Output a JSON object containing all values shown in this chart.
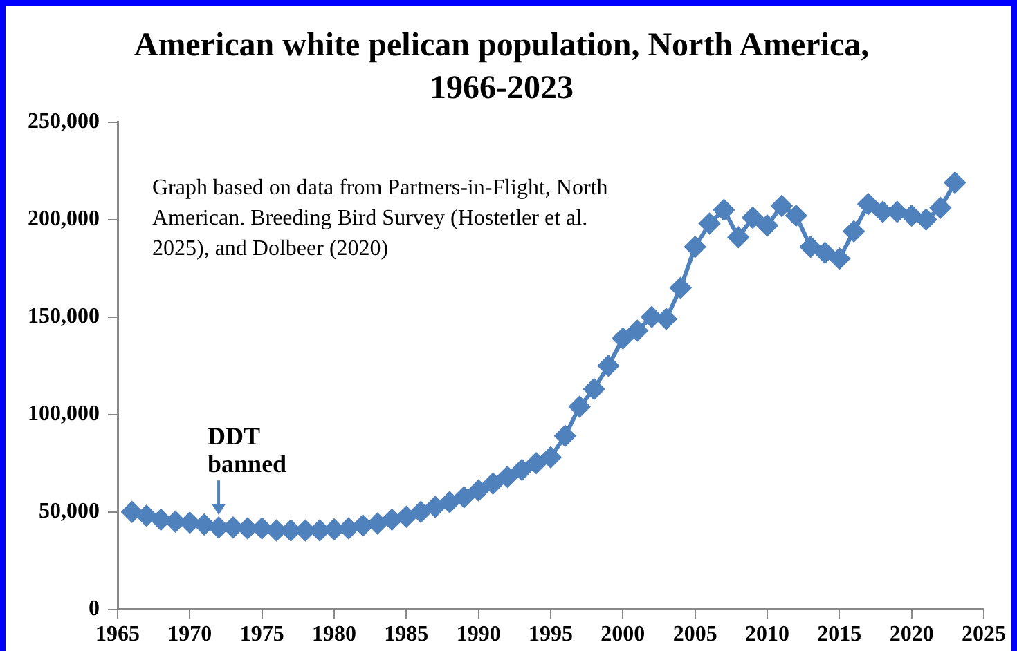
{
  "chart_data": {
    "type": "line",
    "title": "American white pelican population, North America, 1966-2023",
    "x": [
      1966,
      1967,
      1968,
      1969,
      1970,
      1971,
      1972,
      1973,
      1974,
      1975,
      1976,
      1977,
      1978,
      1979,
      1980,
      1981,
      1982,
      1983,
      1984,
      1985,
      1986,
      1987,
      1988,
      1989,
      1990,
      1991,
      1992,
      1993,
      1994,
      1995,
      1996,
      1997,
      1998,
      1999,
      2000,
      2001,
      2002,
      2003,
      2004,
      2005,
      2006,
      2007,
      2008,
      2009,
      2010,
      2011,
      2012,
      2013,
      2014,
      2015,
      2016,
      2017,
      2018,
      2019,
      2020,
      2021,
      2022,
      2023
    ],
    "series": [
      {
        "color": "#4f81bd",
        "values": [
          50000,
          48000,
          46000,
          45000,
          44500,
          43500,
          42000,
          42000,
          41500,
          41500,
          40500,
          40500,
          40500,
          40500,
          41000,
          41500,
          43000,
          44000,
          46000,
          47500,
          50000,
          52500,
          55000,
          57500,
          61000,
          64500,
          68000,
          71500,
          75000,
          78000,
          89000,
          104000,
          113000,
          125000,
          139000,
          143000,
          150000,
          149000,
          165000,
          186000,
          198000,
          205000,
          191000,
          201000,
          197000,
          207000,
          202000,
          186000,
          183000,
          180000,
          194000,
          208000,
          204000,
          204000,
          202000,
          200000,
          206000,
          219000
        ]
      }
    ],
    "xlim": [
      1965,
      2025
    ],
    "xticks": [
      1965,
      1970,
      1975,
      1980,
      1985,
      1990,
      1995,
      2000,
      2005,
      2010,
      2015,
      2020,
      2025
    ],
    "ylim": [
      0,
      250000
    ],
    "yticks": [
      {
        "value": 0,
        "label": "0"
      },
      {
        "value": 50000,
        "label": "50,000"
      },
      {
        "value": 100000,
        "label": "100,000"
      },
      {
        "value": 150000,
        "label": "150,000"
      },
      {
        "value": 200000,
        "label": "200,000"
      },
      {
        "value": 250000,
        "label": "250,000"
      }
    ],
    "grid": false,
    "legend": false,
    "marker": "diamond",
    "line_style": "solid",
    "annotations": [
      {
        "text": "DDT banned",
        "x": 1972,
        "y": 42000
      },
      "Graph based on data from Partners-in-Flight, North American. Breeding Bird Survey (Hostetler et al. 2025), and Dolbeer (2020)"
    ]
  }
}
